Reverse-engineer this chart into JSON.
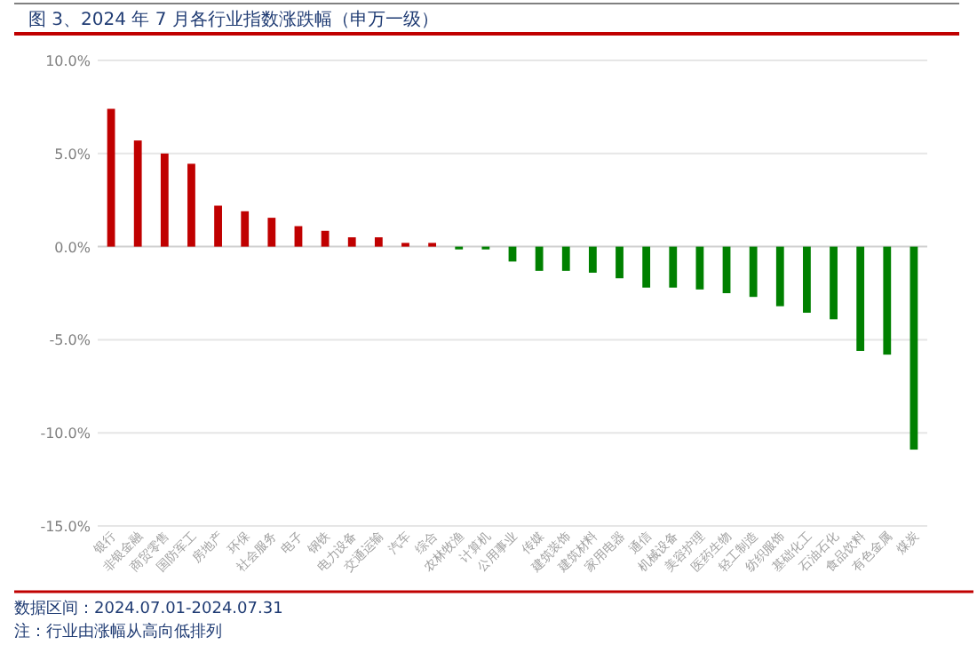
{
  "chart_data": {
    "type": "bar",
    "title": "图 3、2024 年 7 月各行业指数涨跌幅（申万一级）",
    "categories": [
      "银行",
      "非银金融",
      "商贸零售",
      "国防军工",
      "房地产",
      "环保",
      "社会服务",
      "电子",
      "钢铁",
      "电力设备",
      "交通运输",
      "汽车",
      "综合",
      "农林牧渔",
      "计算机",
      "公用事业",
      "传媒",
      "建筑装饰",
      "建筑材料",
      "家用电器",
      "通信",
      "机械设备",
      "美容护理",
      "医药生物",
      "轻工制造",
      "纺织服饰",
      "基础化工",
      "石油石化",
      "食品饮料",
      "有色金属",
      "煤炭"
    ],
    "values": [
      7.4,
      5.7,
      5.0,
      4.45,
      2.2,
      1.9,
      1.55,
      1.1,
      0.85,
      0.5,
      0.5,
      0.2,
      0.2,
      -0.15,
      -0.15,
      -0.8,
      -1.3,
      -1.3,
      -1.4,
      -1.7,
      -2.2,
      -2.2,
      -2.3,
      -2.5,
      -2.7,
      -3.2,
      -3.55,
      -3.9,
      -5.6,
      -5.8,
      -10.9
    ],
    "colors": [
      "#c00000",
      "#c00000",
      "#c00000",
      "#c00000",
      "#c00000",
      "#c00000",
      "#c00000",
      "#c00000",
      "#c00000",
      "#c00000",
      "#c00000",
      "#c00000",
      "#c00000",
      "#008000",
      "#008000",
      "#008000",
      "#008000",
      "#008000",
      "#008000",
      "#008000",
      "#008000",
      "#008000",
      "#008000",
      "#008000",
      "#008000",
      "#008000",
      "#008000",
      "#008000",
      "#008000",
      "#008000",
      "#008000"
    ],
    "ylim": [
      -15,
      10
    ],
    "yticks": [
      {
        "value": -15,
        "label": "-15.0%"
      },
      {
        "value": -10,
        "label": "-10.0%"
      },
      {
        "value": -5,
        "label": "-5.0%"
      },
      {
        "value": 0,
        "label": "0.0%"
      },
      {
        "value": 5,
        "label": "5.0%"
      },
      {
        "value": 10,
        "label": "10.0%"
      }
    ],
    "grid": "y",
    "annotations": [
      "数据区间：2024.07.01-2024.07.31",
      "注：行业由涨幅从高向低排列"
    ]
  }
}
